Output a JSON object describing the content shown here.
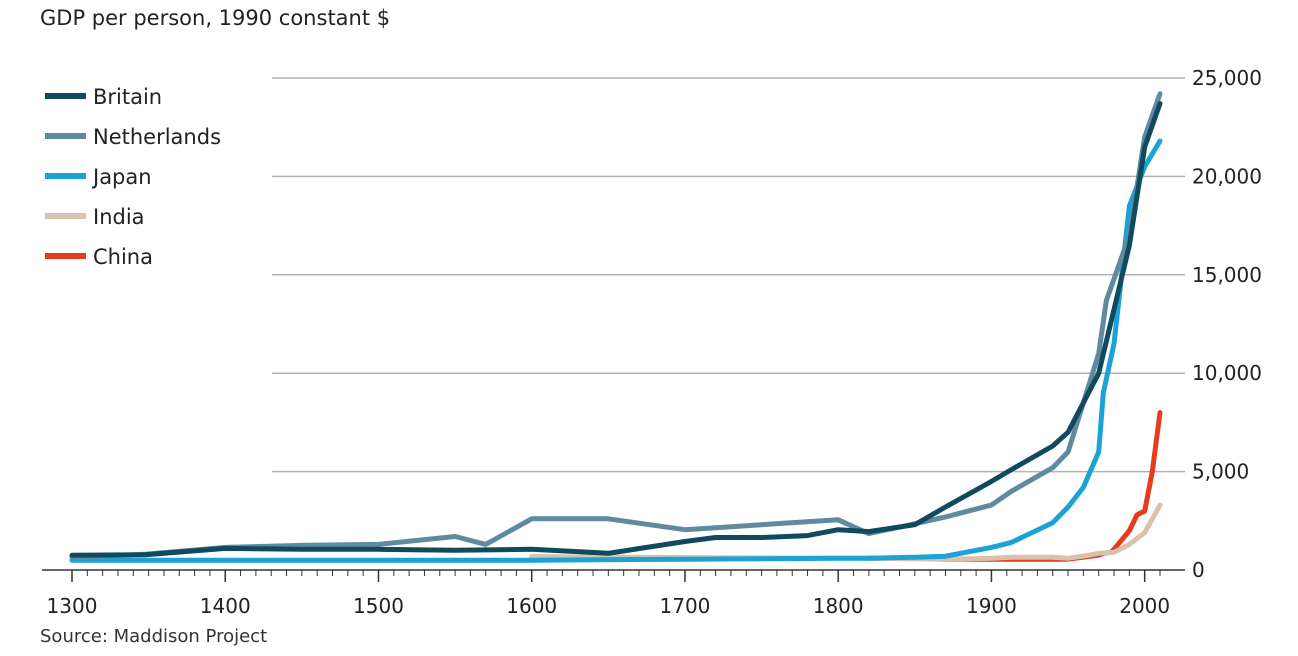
{
  "subtitle": "GDP per person, 1990 constant $",
  "source": "Source: Maddison Project",
  "chart_data": {
    "type": "line",
    "title": "",
    "subtitle": "GDP per person, 1990 constant $",
    "xlabel": "",
    "ylabel": "",
    "xlim": [
      1300,
      2010
    ],
    "ylim": [
      0,
      25000
    ],
    "x_ticks": [
      1300,
      1400,
      1500,
      1600,
      1700,
      1800,
      1900,
      2000
    ],
    "y_ticks": [
      0,
      5000,
      10000,
      15000,
      20000,
      25000
    ],
    "y_tick_labels": [
      "0",
      "5,000",
      "10,000",
      "15,000",
      "20,000",
      "25,000"
    ],
    "y_axis_side": "right",
    "grid": "horizontal",
    "legend_position": "top-left",
    "series": [
      {
        "name": "Britain",
        "color": "#0f4a5e",
        "x": [
          1300,
          1348,
          1400,
          1450,
          1500,
          1550,
          1600,
          1650,
          1700,
          1720,
          1750,
          1780,
          1800,
          1820,
          1850,
          1870,
          1900,
          1913,
          1940,
          1950,
          1970,
          1990,
          2000,
          2010
        ],
        "y": [
          750,
          770,
          1100,
          1050,
          1050,
          1000,
          1050,
          850,
          1450,
          1650,
          1650,
          1750,
          2050,
          1950,
          2300,
          3200,
          4500,
          5100,
          6300,
          7000,
          10000,
          16500,
          21500,
          23700
        ]
      },
      {
        "name": "Netherlands",
        "color": "#5f8aa0",
        "x": [
          1300,
          1348,
          1400,
          1450,
          1500,
          1550,
          1570,
          1600,
          1650,
          1700,
          1750,
          1800,
          1820,
          1850,
          1870,
          1900,
          1913,
          1940,
          1950,
          1970,
          1975,
          1990,
          2000,
          2010
        ],
        "y": [
          650,
          800,
          1150,
          1250,
          1300,
          1700,
          1300,
          2600,
          2600,
          2050,
          2300,
          2550,
          1850,
          2350,
          2700,
          3300,
          4000,
          5200,
          6000,
          11000,
          13700,
          17000,
          22000,
          24200
        ]
      },
      {
        "name": "Japan",
        "color": "#1aa3d4",
        "x": [
          1300,
          1400,
          1500,
          1600,
          1700,
          1800,
          1820,
          1850,
          1870,
          1900,
          1913,
          1940,
          1950,
          1960,
          1970,
          1973,
          1980,
          1990,
          2000,
          2010
        ],
        "y": [
          500,
          500,
          500,
          500,
          550,
          600,
          600,
          650,
          700,
          1150,
          1400,
          2400,
          3200,
          4200,
          6000,
          9000,
          11500,
          18500,
          20500,
          21800
        ]
      },
      {
        "name": "India",
        "color": "#d8c2ac",
        "x": [
          1600,
          1700,
          1820,
          1870,
          1900,
          1913,
          1940,
          1950,
          1960,
          1970,
          1980,
          1990,
          2000,
          2010
        ],
        "y": [
          680,
          630,
          600,
          550,
          600,
          650,
          650,
          600,
          700,
          850,
          900,
          1300,
          1900,
          3300
        ]
      },
      {
        "name": "China",
        "color": "#e63c1e",
        "x": [
          1820,
          1850,
          1870,
          1900,
          1913,
          1940,
          1950,
          1960,
          1970,
          1973,
          1978,
          1980,
          1990,
          1995,
          2000,
          2005,
          2010
        ],
        "y": [
          600,
          600,
          550,
          550,
          550,
          550,
          550,
          650,
          750,
          850,
          900,
          1050,
          2000,
          2800,
          3000,
          5000,
          8000
        ]
      }
    ]
  }
}
